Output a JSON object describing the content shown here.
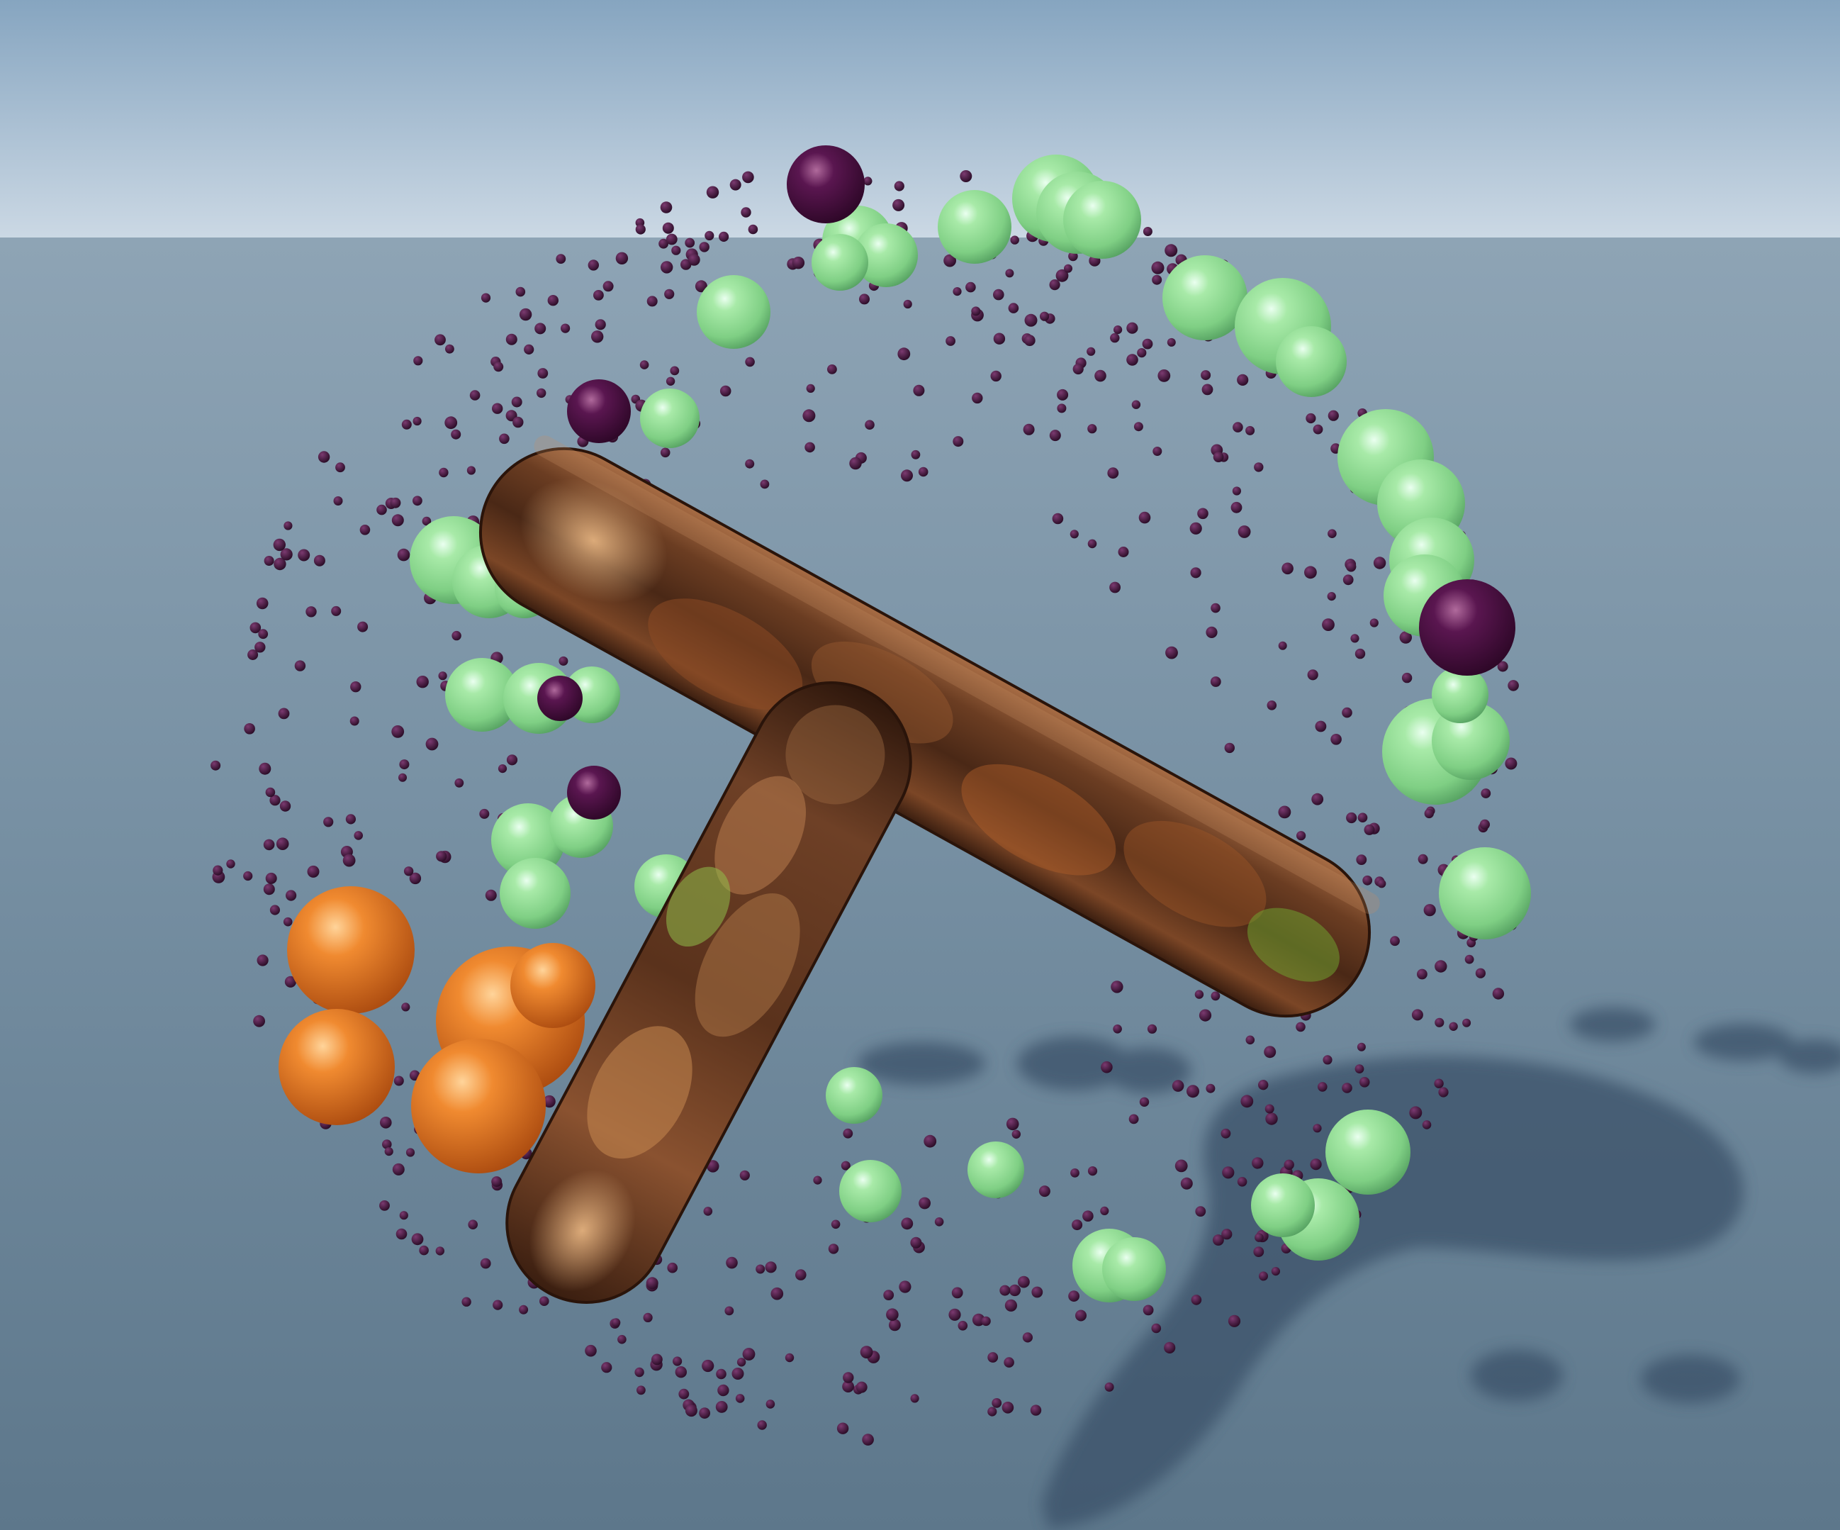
{
  "scene": {
    "colors": {
      "sky_top": "#8aa9c3",
      "sky_horizon": "#c9d7e3",
      "ground_far": "#8aa0b2",
      "ground_near": "#5f7a8e",
      "shadow": "#3a5068",
      "capsule_dark": "#3a1f12",
      "capsule_mid": "#7a4a2a",
      "capsule_light": "#d79a63",
      "green_sphere": "#8ed98e",
      "green_light": "#d8f7cf",
      "green_dark": "#4f9a5c",
      "purple_sphere": "#4a0e3e",
      "purple_light": "#a85c93",
      "orange_sphere": "#e87a24",
      "orange_light": "#ffc27a",
      "orange_dark": "#a8480e",
      "particle": "#2e0b2b"
    },
    "objects": {
      "capsules": 2,
      "green_spheres": 40,
      "purple_spheres": 5,
      "orange_spheres": 5,
      "small_particles": 650
    }
  }
}
